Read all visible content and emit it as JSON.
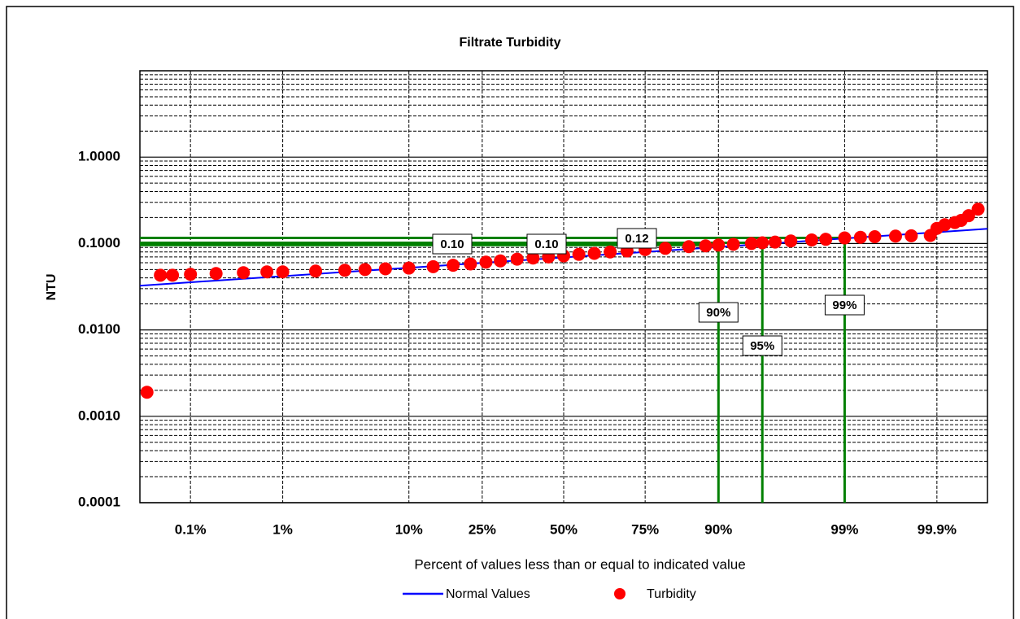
{
  "chart_data": {
    "type": "probability-plot",
    "title": "Filtrate Turbidity",
    "x_label": "Percent of values less than or equal to indicated value",
    "y_label": "NTU",
    "x_scale": "probability",
    "y_scale": "log",
    "grid": true,
    "legend": "bottom",
    "xlim": [
      0.0225,
      99.9775
    ],
    "ylim": [
      0.0001,
      10
    ],
    "xticks": [
      {
        "value": 0.1,
        "label": "0.1%"
      },
      {
        "value": 1,
        "label": "1%"
      },
      {
        "value": 10,
        "label": "10%"
      },
      {
        "value": 25,
        "label": "25%"
      },
      {
        "value": 50,
        "label": "50%"
      },
      {
        "value": 75,
        "label": "75%"
      },
      {
        "value": 90,
        "label": "90%"
      },
      {
        "value": 99,
        "label": "99%"
      },
      {
        "value": 99.9,
        "label": "99.9%"
      }
    ],
    "yticks": [
      {
        "value": 0.0001,
        "label": "0.0001"
      },
      {
        "value": 0.001,
        "label": "0.0010"
      },
      {
        "value": 0.01,
        "label": "0.0100"
      },
      {
        "value": 0.1,
        "label": "0.1000"
      },
      {
        "value": 1,
        "label": "1.0000"
      }
    ],
    "series": [
      {
        "name": "Normal Values",
        "type": "line",
        "color": "#0000ff",
        "x": [
          0.0225,
          50,
          99.9775
        ],
        "values": [
          0.0325,
          0.069,
          0.148
        ]
      },
      {
        "name": "Turbidity",
        "type": "scatter",
        "color": "#ff0000",
        "x": [
          0.028,
          0.042,
          0.06,
          0.1,
          0.2,
          0.4,
          0.7,
          1,
          2,
          3.5,
          5,
          7,
          10,
          14,
          18,
          22,
          26,
          30,
          35,
          40,
          45,
          50,
          55,
          60,
          65,
          70,
          75,
          80,
          85,
          88,
          90,
          92,
          94,
          95,
          96,
          97,
          98,
          98.5,
          99,
          99.3,
          99.5,
          99.7,
          99.8,
          99.88,
          99.9,
          99.92,
          99.94,
          99.95,
          99.96,
          99.97
        ],
        "values": [
          0.0019,
          0.043,
          0.043,
          0.044,
          0.045,
          0.046,
          0.047,
          0.047,
          0.048,
          0.049,
          0.05,
          0.051,
          0.052,
          0.054,
          0.056,
          0.058,
          0.061,
          0.063,
          0.066,
          0.068,
          0.07,
          0.072,
          0.075,
          0.077,
          0.08,
          0.082,
          0.085,
          0.088,
          0.092,
          0.094,
          0.096,
          0.098,
          0.1,
          0.102,
          0.104,
          0.107,
          0.11,
          0.112,
          0.116,
          0.118,
          0.12,
          0.122,
          0.123,
          0.124,
          0.15,
          0.165,
          0.175,
          0.185,
          0.21,
          0.25
        ]
      }
    ],
    "reference_lines": [
      {
        "percentile": 90,
        "percentile_label": "90%",
        "value": 0.096,
        "value_label": "0.10"
      },
      {
        "percentile": 95,
        "percentile_label": "95%",
        "value": 0.102,
        "value_label": "0.10"
      },
      {
        "percentile": 99,
        "percentile_label": "99%",
        "value": 0.116,
        "value_label": "0.12"
      }
    ],
    "reference_color": "#008000"
  }
}
